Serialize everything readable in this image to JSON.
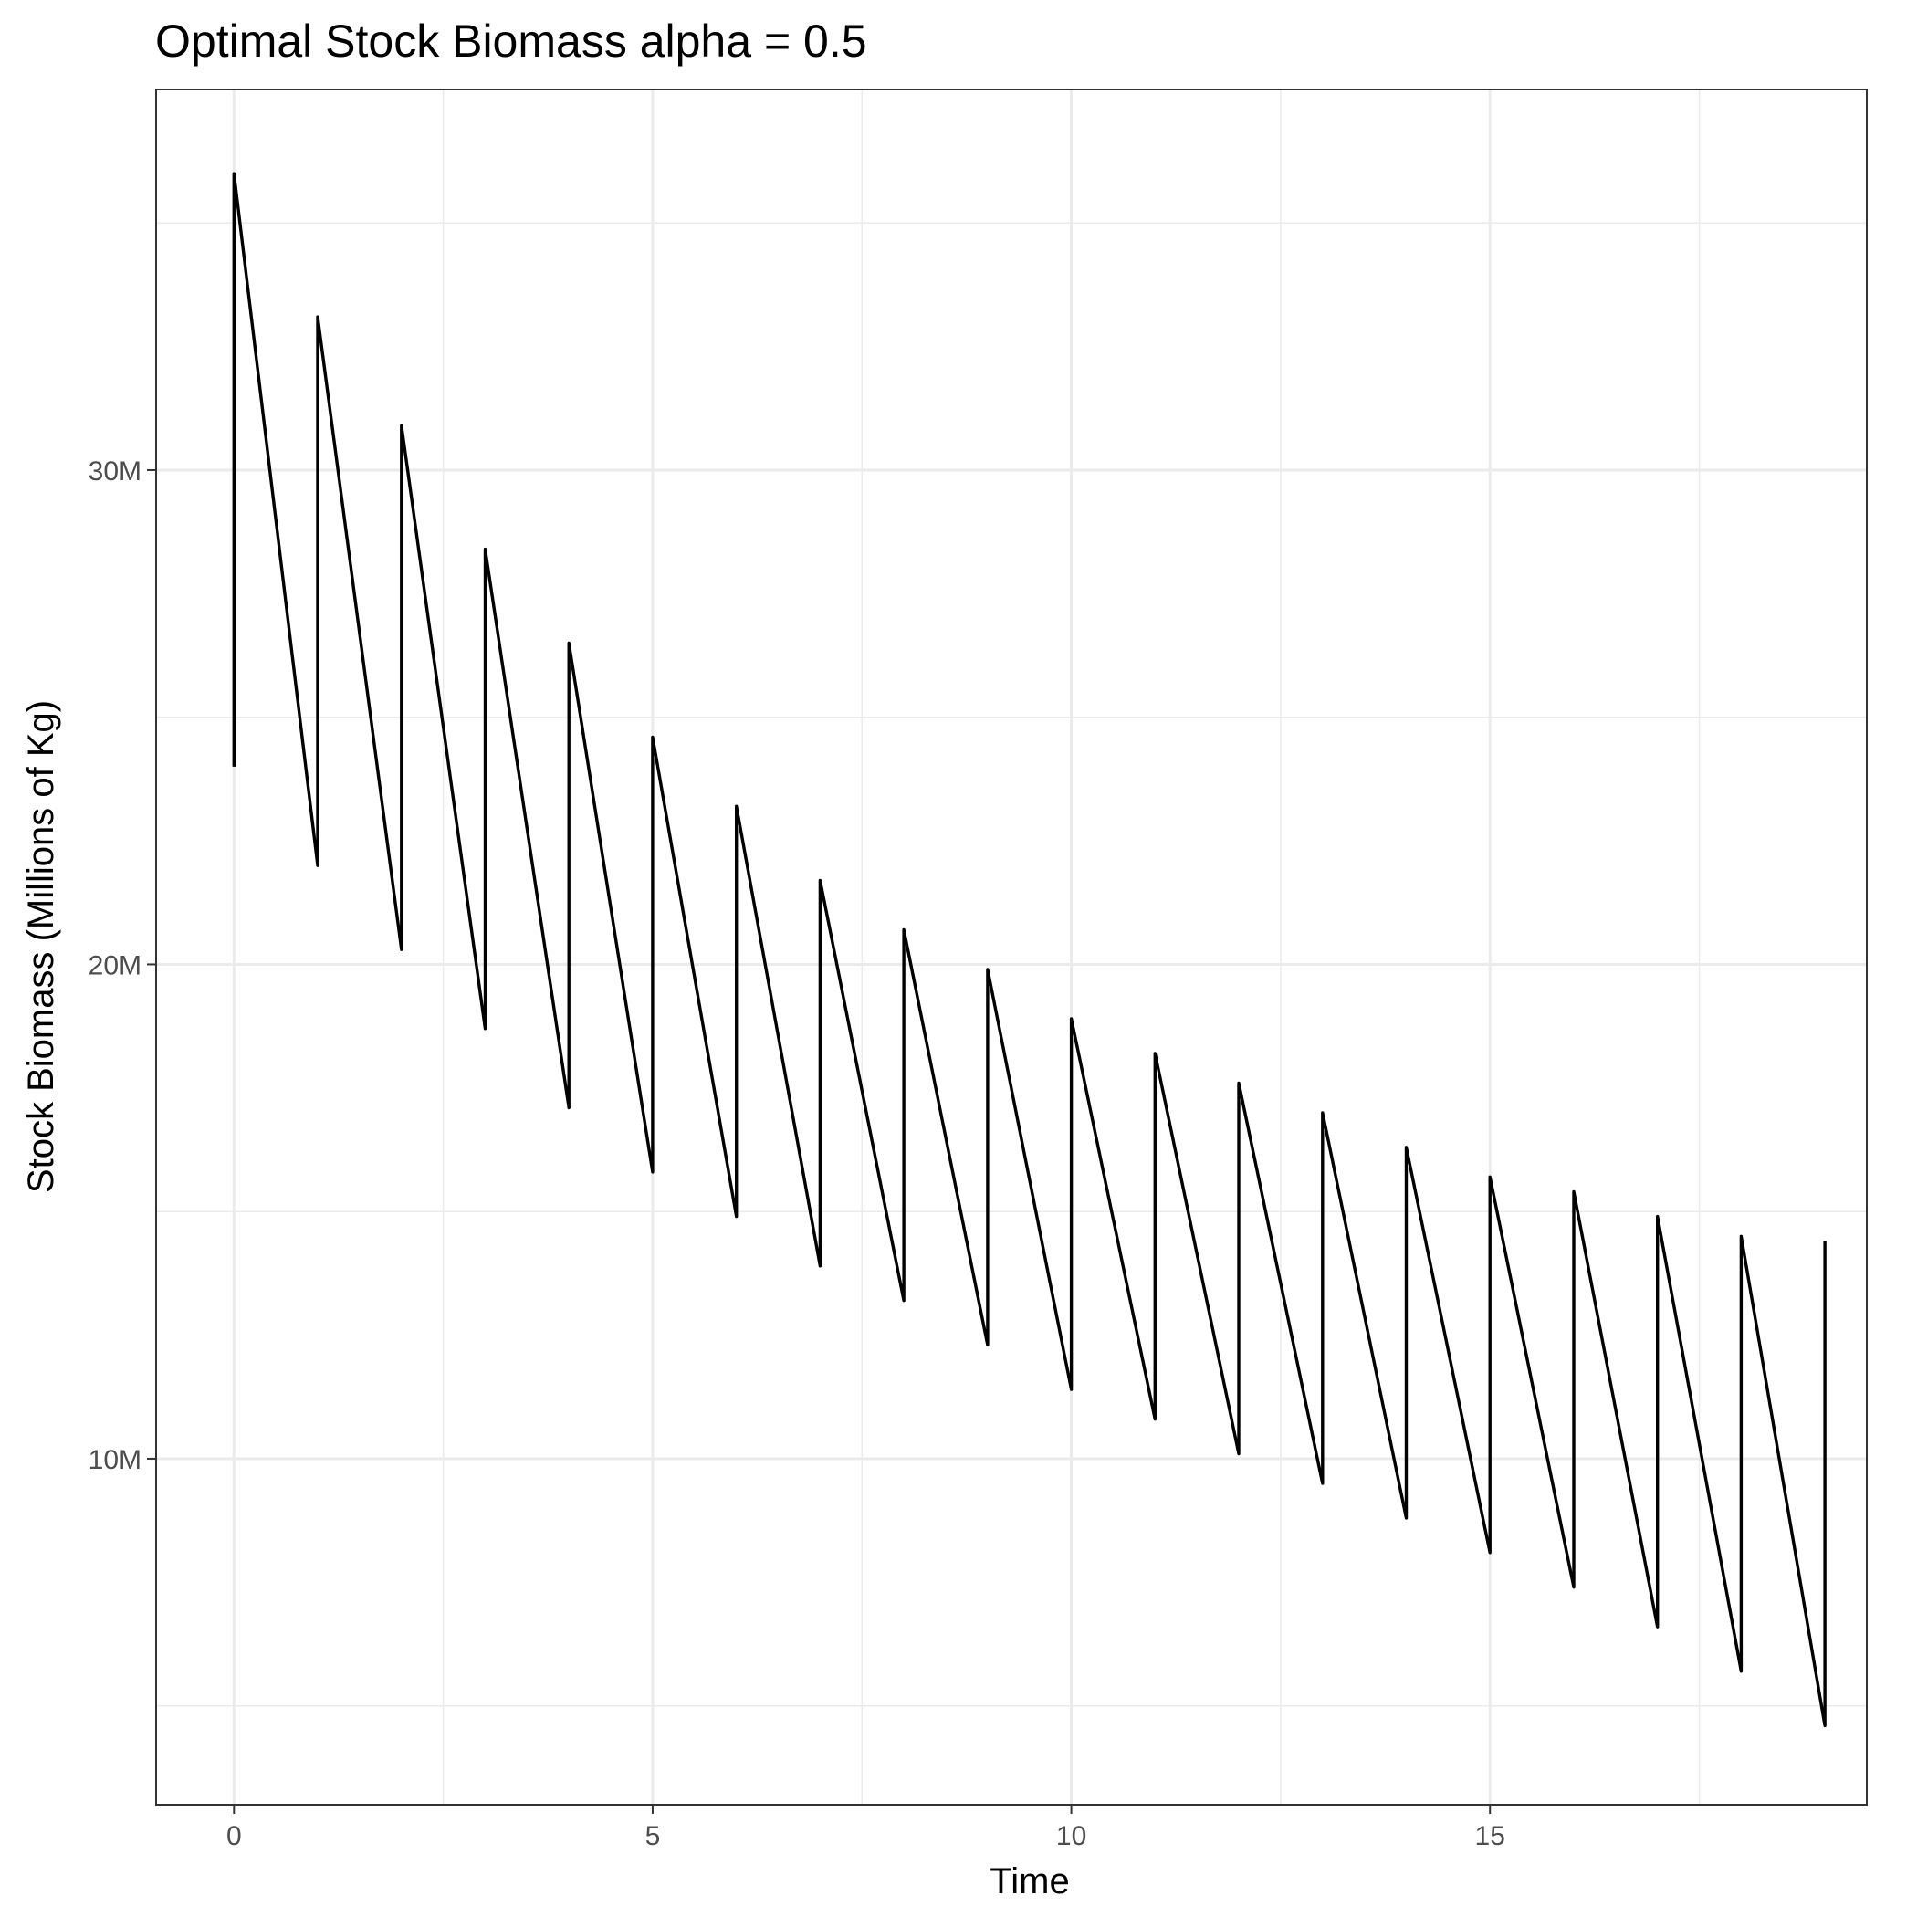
{
  "chart_data": {
    "type": "line",
    "title": "Optimal Stock Biomass alpha = 0.5",
    "xlabel": "Time",
    "ylabel": "Stock Biomass (Millions of Kg)",
    "xlim": [
      -0.93,
      19.5
    ],
    "ylim": [
      3000000,
      37700000
    ],
    "x_ticks": [
      0,
      5,
      10,
      15
    ],
    "x_tick_labels": [
      "0",
      "5",
      "10",
      "15"
    ],
    "y_ticks": [
      10000000,
      20000000,
      30000000
    ],
    "y_tick_labels": [
      "10M",
      "20M",
      "30M"
    ],
    "grid": true,
    "legend": "none",
    "series": [
      {
        "color": "#000000",
        "points": [
          [
            0,
            24000000
          ],
          [
            0,
            36000000
          ],
          [
            1,
            22000000
          ],
          [
            1,
            33100000
          ],
          [
            2,
            20300000
          ],
          [
            2,
            30900000
          ],
          [
            3,
            18700000
          ],
          [
            3,
            28400000
          ],
          [
            4,
            17100000
          ],
          [
            4,
            26500000
          ],
          [
            5,
            15800000
          ],
          [
            5,
            24600000
          ],
          [
            6,
            14900000
          ],
          [
            6,
            23200000
          ],
          [
            7,
            13900000
          ],
          [
            7,
            21700000
          ],
          [
            8,
            13200000
          ],
          [
            8,
            20700000
          ],
          [
            9,
            12300000
          ],
          [
            9,
            19900000
          ],
          [
            10,
            11400000
          ],
          [
            10,
            18900000
          ],
          [
            11,
            10800000
          ],
          [
            11,
            18200000
          ],
          [
            12,
            10100000
          ],
          [
            12,
            17600000
          ],
          [
            13,
            9500000
          ],
          [
            13,
            17000000
          ],
          [
            14,
            8800000
          ],
          [
            14,
            16300000
          ],
          [
            15,
            8100000
          ],
          [
            15,
            15700000
          ],
          [
            16,
            7400000
          ],
          [
            16,
            15400000
          ],
          [
            17,
            6600000
          ],
          [
            17,
            14900000
          ],
          [
            18,
            5700000
          ],
          [
            18,
            14500000
          ],
          [
            19,
            4600000
          ],
          [
            19,
            14400000
          ]
        ]
      }
    ]
  }
}
